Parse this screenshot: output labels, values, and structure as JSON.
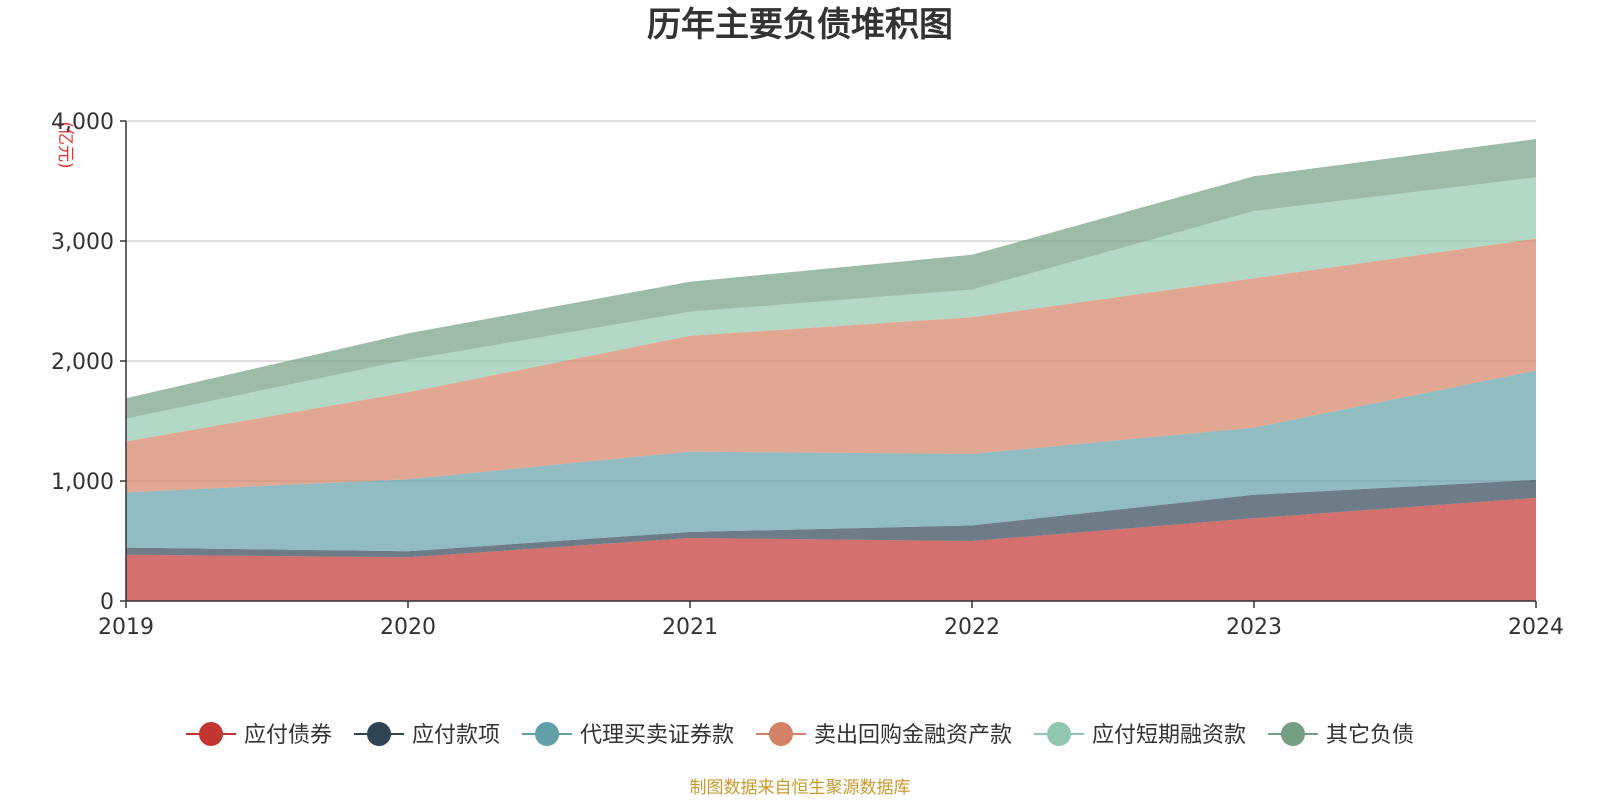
{
  "chart_data": {
    "type": "area",
    "stacked": true,
    "title": "历年主要负债堆积图",
    "unit": "(亿元)",
    "x": [
      "2019",
      "2020",
      "2021",
      "2022",
      "2023",
      "2024"
    ],
    "ylim": [
      0,
      4000
    ],
    "yticks": [
      0,
      1000,
      2000,
      3000,
      4000
    ],
    "ytick_labels": [
      "0",
      "1,000",
      "2,000",
      "3,000",
      "4,000"
    ],
    "grid": true,
    "legend_position": "bottom",
    "series": [
      {
        "name": "应付债券",
        "color": "#c23531",
        "values": [
          385,
          365,
          525,
          500,
          690,
          860
        ]
      },
      {
        "name": "应付款项",
        "color": "#2f4554",
        "values": [
          60,
          50,
          50,
          130,
          195,
          150
        ]
      },
      {
        "name": "代理买卖证券款",
        "color": "#61a0a8",
        "values": [
          460,
          600,
          670,
          595,
          560,
          910
        ]
      },
      {
        "name": "卖出回购金融资产款",
        "color": "#d48265",
        "values": [
          425,
          725,
          965,
          1140,
          1245,
          1100
        ]
      },
      {
        "name": "应付短期融资款",
        "color": "#91c7ae",
        "values": [
          190,
          270,
          200,
          230,
          560,
          510
        ]
      },
      {
        "name": "其它负债",
        "color": "#749f83",
        "values": [
          170,
          220,
          250,
          290,
          290,
          320
        ]
      }
    ]
  },
  "source": "制图数据来自恒生聚源数据库"
}
